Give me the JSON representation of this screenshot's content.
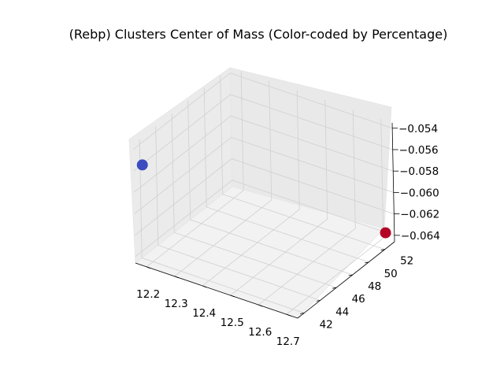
{
  "chart_data": {
    "type": "scatter",
    "projection": "3d",
    "title": "(Rebp) Clusters Center of Mass (Color-coded by Percentage)",
    "xlabel": "",
    "ylabel": "",
    "zlabel": "",
    "x_ticks": [
      "12.2",
      "12.3",
      "12.4",
      "12.5",
      "12.6",
      "12.7"
    ],
    "y_ticks": [
      "42",
      "44",
      "46",
      "48",
      "50",
      "52"
    ],
    "z_ticks": [
      "−0.064",
      "−0.062",
      "−0.060",
      "−0.058",
      "−0.056",
      "−0.054"
    ],
    "xlim": [
      12.16,
      12.74
    ],
    "ylim": [
      41.2,
      53.2
    ],
    "zlim": [
      -0.0646,
      -0.0535
    ],
    "colormap": "coolwarm",
    "grid": true,
    "points": [
      {
        "x": 12.18,
        "y": 41.6,
        "z": -0.0555,
        "color": "#3b4cc0"
      },
      {
        "x": 12.72,
        "y": 52.8,
        "z": -0.0637,
        "color": "#b40426"
      }
    ]
  }
}
